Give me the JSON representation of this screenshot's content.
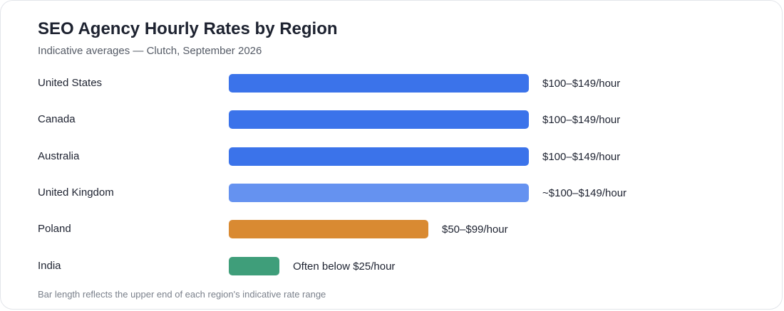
{
  "chart_data": {
    "type": "bar",
    "orientation": "horizontal",
    "title": "SEO Agency Hourly Rates by Region",
    "subtitle": "Indicative averages — Clutch, September 2026",
    "categories": [
      "United States",
      "Canada",
      "Australia",
      "United Kingdom",
      "Poland",
      "India"
    ],
    "values": [
      149,
      149,
      149,
      149,
      99,
      25
    ],
    "value_labels": [
      "$100–$149/hour",
      "$100–$149/hour",
      "$100–$149/hour",
      "~$100–$149/hour",
      "$50–$99/hour",
      "Often below $25/hour"
    ],
    "bar_colors": [
      "#3b73ea",
      "#3b73ea",
      "#3b73ea",
      "#6592f0",
      "#d98a32",
      "#3f9e7a"
    ],
    "xlim": [
      0,
      149
    ],
    "grid": false,
    "footnote": "Bar length reflects the upper end of each region's indicative rate range"
  }
}
